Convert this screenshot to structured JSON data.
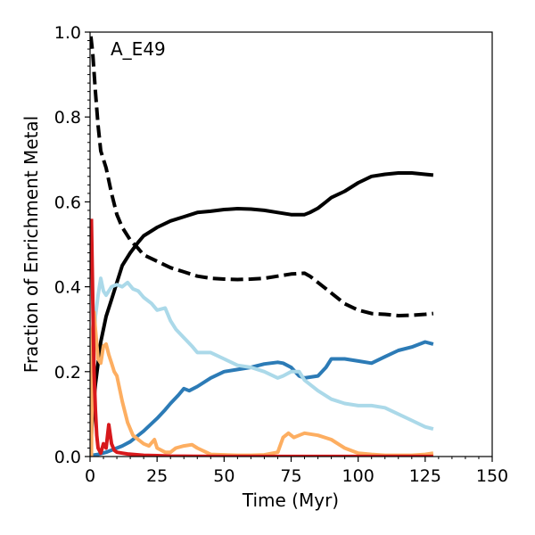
{
  "chart_data": {
    "type": "line",
    "panel_label": "A_E49",
    "xlabel": "Time (Myr)",
    "ylabel": "Fraction of Enrichment Metal",
    "xlim": [
      0,
      150
    ],
    "ylim": [
      0,
      1.0
    ],
    "xticks": [
      0,
      25,
      50,
      75,
      100,
      125,
      150
    ],
    "xtick_labels": [
      "0",
      "25",
      "50",
      "75",
      "100",
      "125",
      "150"
    ],
    "yticks": [
      0.0,
      0.2,
      0.4,
      0.6,
      0.8,
      1.0
    ],
    "ytick_labels": [
      "0.0",
      "0.2",
      "0.4",
      "0.6",
      "0.8",
      "1.0"
    ],
    "grid": false,
    "series": [
      {
        "name": "black-solid",
        "color": "#000000",
        "dash": "solid",
        "x": [
          0,
          1,
          2,
          3,
          4,
          5,
          6,
          8,
          10,
          12,
          15,
          18,
          20,
          25,
          30,
          35,
          40,
          45,
          50,
          55,
          60,
          65,
          70,
          75,
          80,
          82,
          85,
          88,
          90,
          95,
          100,
          105,
          110,
          115,
          120,
          125,
          128
        ],
        "y": [
          0.0,
          0.1,
          0.17,
          0.22,
          0.27,
          0.3,
          0.33,
          0.37,
          0.41,
          0.45,
          0.48,
          0.505,
          0.52,
          0.54,
          0.555,
          0.565,
          0.575,
          0.578,
          0.582,
          0.584,
          0.583,
          0.58,
          0.575,
          0.57,
          0.57,
          0.575,
          0.585,
          0.6,
          0.61,
          0.625,
          0.645,
          0.66,
          0.665,
          0.668,
          0.668,
          0.665,
          0.663
        ]
      },
      {
        "name": "black-dashed",
        "color": "#000000",
        "dash": "dashed",
        "x": [
          0.3,
          1,
          2,
          3,
          4,
          6,
          8,
          10,
          12,
          15,
          18,
          20,
          25,
          30,
          35,
          40,
          45,
          50,
          55,
          60,
          65,
          70,
          75,
          80,
          82,
          85,
          90,
          95,
          100,
          105,
          110,
          115,
          120,
          125,
          128
        ],
        "y": [
          0.99,
          0.95,
          0.86,
          0.78,
          0.72,
          0.68,
          0.62,
          0.57,
          0.54,
          0.51,
          0.49,
          0.475,
          0.46,
          0.445,
          0.435,
          0.425,
          0.42,
          0.418,
          0.417,
          0.418,
          0.42,
          0.425,
          0.43,
          0.432,
          0.425,
          0.41,
          0.385,
          0.36,
          0.345,
          0.337,
          0.335,
          0.332,
          0.333,
          0.335,
          0.337
        ]
      },
      {
        "name": "dark-blue",
        "color": "#2c7bb6",
        "dash": "solid",
        "x": [
          0,
          3,
          6,
          10,
          12,
          15,
          18,
          20,
          25,
          28,
          30,
          33,
          35,
          37,
          40,
          45,
          50,
          55,
          60,
          65,
          70,
          72,
          75,
          78,
          80,
          85,
          88,
          90,
          95,
          100,
          105,
          110,
          115,
          120,
          125,
          128
        ],
        "y": [
          0.002,
          0.005,
          0.01,
          0.02,
          0.025,
          0.035,
          0.05,
          0.06,
          0.09,
          0.11,
          0.125,
          0.145,
          0.16,
          0.155,
          0.165,
          0.185,
          0.2,
          0.205,
          0.21,
          0.218,
          0.222,
          0.22,
          0.21,
          0.19,
          0.185,
          0.19,
          0.21,
          0.23,
          0.23,
          0.225,
          0.22,
          0.235,
          0.25,
          0.258,
          0.27,
          0.265
        ]
      },
      {
        "name": "light-blue",
        "color": "#abd9e9",
        "dash": "solid",
        "x": [
          0,
          1,
          2,
          3,
          4,
          5,
          6,
          8,
          10,
          12,
          14,
          16,
          18,
          20,
          23,
          25,
          28,
          30,
          32,
          35,
          38,
          40,
          45,
          50,
          55,
          60,
          65,
          70,
          72,
          75,
          78,
          80,
          85,
          90,
          95,
          100,
          105,
          110,
          115,
          120,
          125,
          128
        ],
        "y": [
          0.0,
          0.2,
          0.33,
          0.38,
          0.42,
          0.39,
          0.38,
          0.4,
          0.405,
          0.4,
          0.41,
          0.395,
          0.39,
          0.375,
          0.36,
          0.345,
          0.35,
          0.32,
          0.3,
          0.28,
          0.26,
          0.245,
          0.245,
          0.23,
          0.215,
          0.21,
          0.2,
          0.185,
          0.19,
          0.2,
          0.2,
          0.18,
          0.155,
          0.135,
          0.125,
          0.12,
          0.12,
          0.115,
          0.1,
          0.085,
          0.07,
          0.065
        ]
      },
      {
        "name": "orange",
        "color": "#fdae61",
        "dash": "solid",
        "x": [
          0.5,
          1,
          1.5,
          2,
          3,
          4,
          5,
          6,
          7,
          8,
          9,
          10,
          12,
          14,
          16,
          18,
          20,
          22,
          24,
          25,
          28,
          30,
          32,
          35,
          38,
          40,
          45,
          50,
          55,
          60,
          65,
          70,
          72,
          74,
          76,
          78,
          80,
          85,
          90,
          95,
          100,
          105,
          110,
          115,
          120,
          125,
          128
        ],
        "y": [
          0.0,
          0.3,
          0.34,
          0.3,
          0.23,
          0.22,
          0.26,
          0.265,
          0.24,
          0.22,
          0.2,
          0.19,
          0.13,
          0.08,
          0.05,
          0.04,
          0.03,
          0.025,
          0.04,
          0.02,
          0.01,
          0.01,
          0.02,
          0.025,
          0.028,
          0.02,
          0.005,
          0.004,
          0.003,
          0.003,
          0.004,
          0.01,
          0.045,
          0.055,
          0.045,
          0.05,
          0.055,
          0.05,
          0.04,
          0.02,
          0.008,
          0.005,
          0.003,
          0.003,
          0.003,
          0.005,
          0.008
        ]
      },
      {
        "name": "red",
        "color": "#d7191c",
        "dash": "solid",
        "x": [
          0.5,
          0.8,
          1.2,
          1.5,
          2,
          2.5,
          3,
          4,
          5,
          6,
          7,
          8,
          9,
          10,
          12,
          14,
          16,
          20,
          25,
          30,
          40,
          60,
          80,
          100,
          128
        ],
        "y": [
          0.56,
          0.45,
          0.3,
          0.2,
          0.11,
          0.05,
          0.02,
          0.008,
          0.03,
          0.02,
          0.075,
          0.03,
          0.015,
          0.01,
          0.008,
          0.006,
          0.005,
          0.003,
          0.002,
          0.001,
          0.0005,
          0.0003,
          0.0002,
          0.0002,
          0.0002
        ]
      }
    ]
  }
}
